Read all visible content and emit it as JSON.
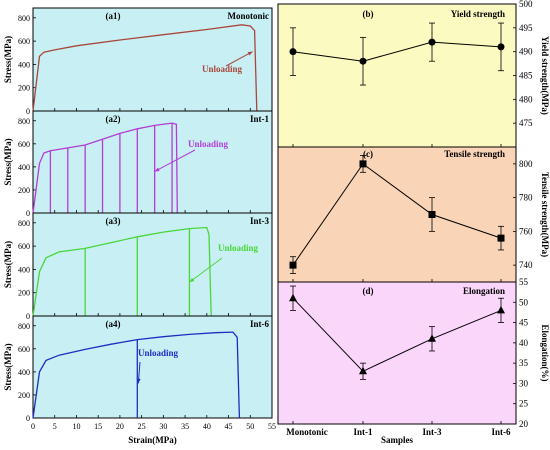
{
  "colors": {
    "left_bg": "#c8f0f4",
    "yield_bg": "#fbfac0",
    "tensile_bg": "#fad4b6",
    "elong_bg": "#fbd6fb",
    "monotonic": "#a9463a",
    "int1": "#b23cd6",
    "int3": "#49d63a",
    "int6": "#1f2cc4"
  },
  "left": {
    "xlabel": "Strain(MPa)",
    "xticks": [
      "0",
      "5",
      "10",
      "15",
      "20",
      "25",
      "30",
      "35",
      "40",
      "45",
      "50",
      "55"
    ]
  },
  "right": {
    "xlabel": "Samples"
  },
  "chart_data": [
    {
      "id": "a1",
      "type": "line",
      "panel_label": "(a1)",
      "series_label": "Monotonic",
      "annotation": "Unloading",
      "ylabel": "Stress(MPa)",
      "xlabel": "",
      "xlim": [
        0,
        55
      ],
      "ylim": [
        0,
        850
      ],
      "yticks": [
        "0",
        "200",
        "400",
        "600",
        "800"
      ],
      "curve": [
        [
          0,
          0
        ],
        [
          1.5,
          470
        ],
        [
          2.5,
          505
        ],
        [
          5,
          525
        ],
        [
          10,
          560
        ],
        [
          20,
          610
        ],
        [
          30,
          655
        ],
        [
          40,
          700
        ],
        [
          48,
          740
        ],
        [
          50,
          730
        ],
        [
          51,
          690
        ],
        [
          51.5,
          0
        ]
      ],
      "unload_x": []
    },
    {
      "id": "a2",
      "type": "line",
      "panel_label": "(a2)",
      "series_label": "Int-1",
      "annotation": "Unloading",
      "ylabel": "Stress(MPa)",
      "xlabel": "",
      "xlim": [
        0,
        55
      ],
      "ylim": [
        0,
        850
      ],
      "yticks": [
        "0",
        "200",
        "400",
        "600",
        "800"
      ],
      "curve": [
        [
          0,
          0
        ],
        [
          1.5,
          430
        ],
        [
          2.5,
          520
        ],
        [
          4,
          540
        ],
        [
          8,
          565
        ],
        [
          12,
          590
        ],
        [
          16,
          640
        ],
        [
          20,
          690
        ],
        [
          24,
          730
        ],
        [
          28,
          760
        ],
        [
          32,
          780
        ],
        [
          33,
          770
        ],
        [
          33.2,
          0
        ]
      ],
      "unload_x": [
        4,
        8,
        12,
        16,
        20,
        24,
        28,
        32
      ]
    },
    {
      "id": "a3",
      "type": "line",
      "panel_label": "(a3)",
      "series_label": "Int-3",
      "annotation": "Unloading",
      "ylabel": "Stress(MPa)",
      "xlabel": "",
      "xlim": [
        0,
        55
      ],
      "ylim": [
        0,
        850
      ],
      "yticks": [
        "0",
        "200",
        "400",
        "600",
        "800"
      ],
      "curve": [
        [
          0,
          0
        ],
        [
          1.5,
          380
        ],
        [
          3,
          500
        ],
        [
          6,
          550
        ],
        [
          12,
          580
        ],
        [
          18,
          630
        ],
        [
          24,
          680
        ],
        [
          30,
          720
        ],
        [
          36,
          750
        ],
        [
          40,
          760
        ],
        [
          40.5,
          700
        ],
        [
          41,
          0
        ]
      ],
      "unload_x": [
        12,
        24,
        36
      ]
    },
    {
      "id": "a4",
      "type": "line",
      "panel_label": "(a4)",
      "series_label": "Int-6",
      "annotation": "Unloading",
      "ylabel": "Stress(MPa)",
      "xlabel": "Strain(MPa)",
      "xlim": [
        0,
        55
      ],
      "ylim": [
        0,
        850
      ],
      "yticks": [
        "0",
        "200",
        "400",
        "600",
        "800"
      ],
      "curve": [
        [
          0,
          0
        ],
        [
          1.5,
          400
        ],
        [
          3,
          500
        ],
        [
          6,
          545
        ],
        [
          12,
          595
        ],
        [
          18,
          640
        ],
        [
          24,
          680
        ],
        [
          30,
          705
        ],
        [
          36,
          725
        ],
        [
          42,
          740
        ],
        [
          46,
          745
        ],
        [
          47,
          700
        ],
        [
          47.5,
          0
        ]
      ],
      "unload_x": [
        24
      ]
    },
    {
      "id": "b",
      "type": "line",
      "marker": "circle",
      "panel_label": "(b)",
      "title": "Yield strength",
      "ylabel": "Yield strength(MPa)",
      "categories": [
        "Monotonic",
        "Int-1",
        "Int-3",
        "Int-6"
      ],
      "values": [
        490,
        488,
        492,
        491
      ],
      "errors": [
        5,
        5,
        4,
        5
      ],
      "ylim": [
        470,
        500
      ],
      "yticks": [
        "475",
        "480",
        "485",
        "490",
        "495",
        "500"
      ]
    },
    {
      "id": "c",
      "type": "line",
      "marker": "square",
      "panel_label": "(c)",
      "title": "Tensile strength",
      "ylabel": "Tensile strength(MPa)",
      "categories": [
        "Monotonic",
        "Int-1",
        "Int-3",
        "Int-6"
      ],
      "values": [
        740,
        800,
        770,
        756
      ],
      "errors": [
        5,
        5,
        10,
        7
      ],
      "ylim": [
        730,
        810
      ],
      "yticks": [
        "740",
        "760",
        "780",
        "800"
      ]
    },
    {
      "id": "d",
      "type": "line",
      "marker": "triangle",
      "panel_label": "(d)",
      "title": "Elongation",
      "ylabel": "Elongation(%)",
      "categories": [
        "Monotonic",
        "Int-1",
        "Int-3",
        "Int-6"
      ],
      "values": [
        51,
        33,
        41,
        48
      ],
      "errors": [
        3,
        2,
        3,
        3
      ],
      "ylim": [
        20,
        55
      ],
      "yticks": [
        "20",
        "25",
        "30",
        "35",
        "40",
        "45",
        "50",
        "55"
      ]
    }
  ]
}
